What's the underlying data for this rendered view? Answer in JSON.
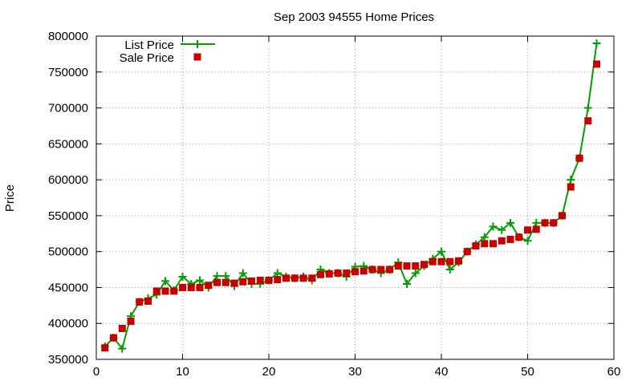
{
  "chart_data": {
    "type": "line",
    "title": "Sep 2003 94555 Home Prices",
    "xlabel": "",
    "ylabel": "Price",
    "xlim": [
      0,
      60
    ],
    "ylim": [
      350000,
      800000
    ],
    "xticks": [
      0,
      10,
      20,
      30,
      40,
      50,
      60
    ],
    "yticks": [
      350000,
      400000,
      450000,
      500000,
      550000,
      600000,
      650000,
      700000,
      750000,
      800000
    ],
    "grid": true,
    "legend_position": "top-left",
    "series": [
      {
        "name": "List Price",
        "style": "line+plus",
        "color": "#00a000",
        "x": [
          1,
          2,
          3,
          4,
          5,
          6,
          7,
          8,
          9,
          10,
          11,
          12,
          13,
          14,
          15,
          16,
          17,
          18,
          19,
          20,
          21,
          22,
          23,
          24,
          25,
          26,
          27,
          28,
          29,
          30,
          31,
          32,
          33,
          34,
          35,
          36,
          37,
          38,
          39,
          40,
          41,
          42,
          43,
          44,
          45,
          46,
          47,
          48,
          49,
          50,
          51,
          52,
          53,
          54,
          55,
          56,
          57,
          58
        ],
        "y": [
          368000,
          380000,
          365000,
          410000,
          430000,
          435000,
          440000,
          459000,
          446000,
          465000,
          455000,
          460000,
          450000,
          466000,
          466000,
          452000,
          470000,
          455000,
          455000,
          460000,
          470000,
          465000,
          463000,
          465000,
          460000,
          475000,
          470000,
          470000,
          465000,
          479000,
          480000,
          475000,
          470000,
          475000,
          485000,
          455000,
          470000,
          480000,
          490000,
          500000,
          475000,
          485000,
          500000,
          510000,
          520000,
          535000,
          530000,
          540000,
          520000,
          515000,
          540000,
          540000,
          540000,
          550000,
          600000,
          630000,
          700000,
          790000
        ]
      },
      {
        "name": "Sale Price",
        "style": "square",
        "color": "#c80000",
        "x": [
          1,
          2,
          3,
          4,
          5,
          6,
          7,
          8,
          9,
          10,
          11,
          12,
          13,
          14,
          15,
          16,
          17,
          18,
          19,
          20,
          21,
          22,
          23,
          24,
          25,
          26,
          27,
          28,
          29,
          30,
          31,
          32,
          33,
          34,
          35,
          36,
          37,
          38,
          39,
          40,
          41,
          42,
          43,
          44,
          45,
          46,
          47,
          48,
          49,
          50,
          51,
          52,
          53,
          54,
          55,
          56,
          57,
          58
        ],
        "y": [
          366000,
          380000,
          393000,
          403000,
          430000,
          431000,
          445000,
          445000,
          445000,
          450000,
          450000,
          450000,
          453000,
          457000,
          457000,
          456000,
          458000,
          459000,
          460000,
          460000,
          461000,
          463000,
          463000,
          463000,
          463000,
          468000,
          469000,
          470000,
          470000,
          472000,
          473000,
          475000,
          475000,
          475000,
          480000,
          480000,
          480000,
          482000,
          486000,
          486000,
          486000,
          487000,
          500000,
          508000,
          511000,
          511000,
          515000,
          517000,
          520000,
          530000,
          531000,
          540000,
          540000,
          550000,
          590000,
          630000,
          682000,
          761000
        ]
      }
    ]
  }
}
